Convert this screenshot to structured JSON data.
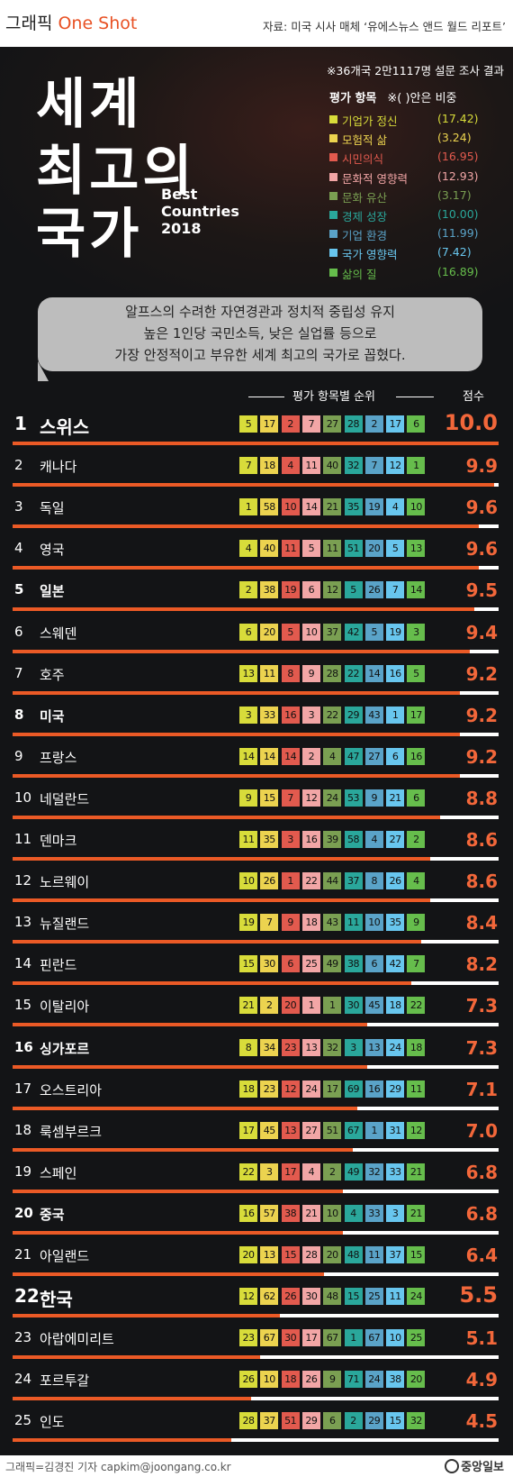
{
  "header": {
    "brand_prefix": "그래픽",
    "brand_name": "One Shot",
    "source": "자료: 미국 시사 매체 ‘유에스뉴스 앤드 월드 리포트’"
  },
  "survey_note": "※36개국 2만1117명 설문 조사 결과",
  "title_lines": [
    "세계",
    "최고의",
    "국가"
  ],
  "subtitle": "Best Countries 2018",
  "legend": {
    "heading": "평가 항목",
    "note": "※( )안은 비중",
    "items": [
      {
        "label": "기업가 정신",
        "weight": "(17.42)",
        "color": "#d8dc3a"
      },
      {
        "label": "모험적 삶",
        "weight": "(3.24)",
        "color": "#ecd34f"
      },
      {
        "label": "시민의식",
        "weight": "(16.95)",
        "color": "#e25a4e"
      },
      {
        "label": "문화적 영향력",
        "weight": "(12.93)",
        "color": "#f2a6a6"
      },
      {
        "label": "문화 유산",
        "weight": "(3.17)",
        "color": "#7a9f52"
      },
      {
        "label": "경제 성장",
        "weight": "(10.00)",
        "color": "#2aa79b"
      },
      {
        "label": "기업 환경",
        "weight": "(11.99)",
        "color": "#5aa3c8"
      },
      {
        "label": "국가 영향력",
        "weight": "(7.42)",
        "color": "#68c6ee"
      },
      {
        "label": "삶의 질",
        "weight": "(16.89)",
        "color": "#66bd4c"
      }
    ]
  },
  "summary": [
    "알프스의 수려한 자연경관과 정치적 중립성 유지",
    "높은 1인당 국민소득, 낮은 실업률 등으로",
    "가장 안정적이고 부유한 세계 최고의 국가로 꼽혔다."
  ],
  "table_header": {
    "ranks_label": "평가 항목별 순위",
    "score_label": "점수"
  },
  "chart_data": {
    "type": "table",
    "title": "세계 최고의 국가",
    "subtitle": "Best Countries 2018",
    "columns": [
      "기업가 정신",
      "모험적 삶",
      "시민의식",
      "문화적 영향력",
      "문화 유산",
      "경제 성장",
      "기업 환경",
      "국가 영향력",
      "삶의 질"
    ],
    "score_max": 10.0,
    "rows": [
      {
        "rank": "1",
        "country": "스위스",
        "ranks": [
          5,
          17,
          2,
          7,
          27,
          28,
          2,
          17,
          6
        ],
        "score": "10.0"
      },
      {
        "rank": "2",
        "country": "캐나다",
        "ranks": [
          7,
          18,
          4,
          11,
          40,
          32,
          7,
          12,
          1
        ],
        "score": "9.9"
      },
      {
        "rank": "3",
        "country": "독일",
        "ranks": [
          1,
          58,
          10,
          14,
          21,
          35,
          19,
          4,
          10
        ],
        "score": "9.6"
      },
      {
        "rank": "4",
        "country": "영국",
        "ranks": [
          4,
          40,
          11,
          5,
          11,
          51,
          20,
          5,
          13
        ],
        "score": "9.6"
      },
      {
        "rank": "5",
        "country": "일본",
        "ranks": [
          2,
          38,
          19,
          6,
          12,
          5,
          26,
          7,
          14
        ],
        "score": "9.5"
      },
      {
        "rank": "6",
        "country": "스웨덴",
        "ranks": [
          6,
          20,
          5,
          10,
          37,
          42,
          5,
          19,
          3
        ],
        "score": "9.4"
      },
      {
        "rank": "7",
        "country": "호주",
        "ranks": [
          13,
          11,
          8,
          9,
          28,
          22,
          14,
          16,
          5
        ],
        "score": "9.2"
      },
      {
        "rank": "8",
        "country": "미국",
        "ranks": [
          3,
          33,
          16,
          3,
          22,
          29,
          43,
          1,
          17
        ],
        "score": "9.2"
      },
      {
        "rank": "9",
        "country": "프랑스",
        "ranks": [
          14,
          14,
          14,
          2,
          4,
          47,
          27,
          6,
          16
        ],
        "score": "9.2"
      },
      {
        "rank": "10",
        "country": "네덜란드",
        "ranks": [
          9,
          15,
          7,
          12,
          24,
          53,
          9,
          21,
          6
        ],
        "score": "8.8"
      },
      {
        "rank": "11",
        "country": "덴마크",
        "ranks": [
          11,
          35,
          3,
          16,
          39,
          58,
          4,
          27,
          2
        ],
        "score": "8.6"
      },
      {
        "rank": "12",
        "country": "노르웨이",
        "ranks": [
          10,
          26,
          1,
          22,
          44,
          37,
          8,
          26,
          4
        ],
        "score": "8.6"
      },
      {
        "rank": "13",
        "country": "뉴질랜드",
        "ranks": [
          19,
          7,
          9,
          18,
          43,
          11,
          10,
          35,
          9
        ],
        "score": "8.4"
      },
      {
        "rank": "14",
        "country": "핀란드",
        "ranks": [
          15,
          30,
          6,
          25,
          49,
          38,
          6,
          42,
          7
        ],
        "score": "8.2"
      },
      {
        "rank": "15",
        "country": "이탈리아",
        "ranks": [
          21,
          2,
          20,
          1,
          1,
          30,
          45,
          18,
          22
        ],
        "score": "7.3"
      },
      {
        "rank": "16",
        "country": "싱가포르",
        "ranks": [
          8,
          34,
          23,
          13,
          32,
          3,
          13,
          24,
          18
        ],
        "score": "7.3"
      },
      {
        "rank": "17",
        "country": "오스트리아",
        "ranks": [
          18,
          23,
          12,
          24,
          17,
          69,
          16,
          29,
          11
        ],
        "score": "7.1"
      },
      {
        "rank": "18",
        "country": "룩셈부르크",
        "ranks": [
          17,
          45,
          13,
          27,
          51,
          67,
          1,
          31,
          12
        ],
        "score": "7.0"
      },
      {
        "rank": "19",
        "country": "스페인",
        "ranks": [
          22,
          3,
          17,
          4,
          2,
          49,
          32,
          33,
          21
        ],
        "score": "6.8"
      },
      {
        "rank": "20",
        "country": "중국",
        "ranks": [
          16,
          57,
          38,
          21,
          10,
          4,
          33,
          3,
          21
        ],
        "score": "6.8"
      },
      {
        "rank": "21",
        "country": "아일랜드",
        "ranks": [
          20,
          13,
          15,
          28,
          20,
          48,
          11,
          37,
          15
        ],
        "score": "6.4"
      },
      {
        "rank": "22",
        "country": "한국",
        "ranks": [
          12,
          62,
          26,
          30,
          48,
          15,
          25,
          11,
          24
        ],
        "score": "5.5"
      },
      {
        "rank": "23",
        "country": "아랍에미리트",
        "ranks": [
          23,
          67,
          30,
          17,
          67,
          1,
          67,
          10,
          25
        ],
        "score": "5.1"
      },
      {
        "rank": "24",
        "country": "포르투갈",
        "ranks": [
          26,
          10,
          18,
          26,
          9,
          71,
          24,
          38,
          20
        ],
        "score": "4.9"
      },
      {
        "rank": "25",
        "country": "인도",
        "ranks": [
          28,
          37,
          51,
          29,
          6,
          2,
          29,
          15,
          32
        ],
        "score": "4.5"
      }
    ]
  },
  "footer": {
    "credit": "그래픽=김경진 기자 capkim@joongang.co.kr",
    "publisher": "중앙일보"
  }
}
